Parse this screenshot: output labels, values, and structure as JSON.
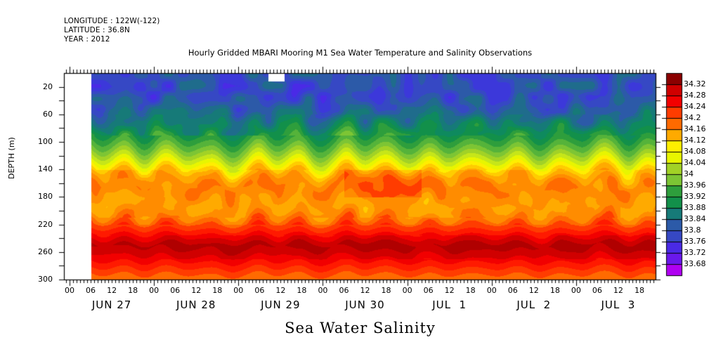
{
  "header": {
    "longitude": "LONGITUDE : 122W(-122)",
    "latitude": "LATITUDE : 36.8N",
    "year": "YEAR : 2012"
  },
  "chart_data": {
    "type": "heatmap",
    "subtype": "filled-contour",
    "title": "Hourly Gridded MBARI Mooring M1 Sea Water Temperature and Salinity Observations",
    "variable_title": "Sea Water Salinity",
    "xlabel": "",
    "ylabel": "DEPTH (m)",
    "y_axis": {
      "range": [
        0,
        300
      ],
      "inverted": true,
      "major_ticks": [
        20,
        60,
        100,
        140,
        180,
        220,
        260,
        300
      ],
      "minor_ticks": [
        40,
        80,
        120,
        160,
        200,
        240,
        280
      ]
    },
    "x_axis": {
      "unit": "hour",
      "range_hours_from_jun27_00": [
        -1.6,
        166.6
      ],
      "hour_tick_labels": [
        "00",
        "06",
        "12",
        "18",
        "00",
        "06",
        "12",
        "18",
        "00",
        "06",
        "12",
        "18",
        "00",
        "06",
        "12",
        "18",
        "00",
        "06",
        "12",
        "18",
        "00",
        "06",
        "12",
        "18",
        "00",
        "06",
        "12",
        "18"
      ],
      "hour_tick_values": [
        0,
        6,
        12,
        18,
        24,
        30,
        36,
        42,
        48,
        54,
        60,
        66,
        72,
        78,
        84,
        90,
        96,
        102,
        108,
        114,
        120,
        126,
        132,
        138,
        144,
        150,
        156,
        162
      ],
      "day_labels": [
        "JUN 27",
        "JUN 28",
        "JUN 29",
        "JUN 30",
        "JUL  1",
        "JUL  2",
        "JUL  3"
      ],
      "day_label_centers_hours": [
        12,
        36,
        60,
        84,
        108,
        132,
        156
      ],
      "data_start_hour": 6,
      "missing_region": {
        "hours": [
          56.5,
          61
        ],
        "depth": [
          0,
          12
        ]
      }
    },
    "colorbar": {
      "labels": [
        "34.32",
        "34.28",
        "34.24",
        "34.2",
        "34.16",
        "34.12",
        "34.08",
        "34.04",
        "34",
        "33.96",
        "33.92",
        "33.88",
        "33.84",
        "33.8",
        "33.76",
        "33.72",
        "33.68"
      ],
      "levels": [
        33.68,
        33.7,
        33.72,
        33.74,
        33.76,
        33.78,
        33.8,
        33.82,
        33.84,
        33.86,
        33.88,
        33.9,
        33.92,
        33.94,
        33.96,
        33.98,
        34.0,
        34.02,
        34.04,
        34.06,
        34.08,
        34.1,
        34.12,
        34.14,
        34.16,
        34.18,
        34.2,
        34.22,
        34.24,
        34.26,
        34.28,
        34.3,
        34.32
      ],
      "colors_high_to_low": [
        "#8b0000",
        "#b00000",
        "#d00000",
        "#f20000",
        "#ff1a00",
        "#ff3c00",
        "#ff6a00",
        "#ff8c00",
        "#ffaa00",
        "#ffcc00",
        "#ffee00",
        "#e8f500",
        "#c6e619",
        "#a2d226",
        "#7dc534",
        "#55b33a",
        "#2e9e3c",
        "#12904a",
        "#0e8a5e",
        "#167a78",
        "#1f6c8c",
        "#2c5aa8",
        "#3648c4",
        "#3c38da",
        "#4a2ae6",
        "#6a18ec",
        "#8c0cf0",
        "#b000f2"
      ]
    },
    "profile_samples": {
      "depths": [
        10,
        30,
        50,
        70,
        90,
        110,
        130,
        145,
        160,
        175,
        190,
        205,
        220,
        235,
        250,
        265,
        280,
        295
      ],
      "mean_salinity": [
        33.8,
        33.79,
        33.82,
        33.86,
        33.92,
        33.98,
        34.06,
        34.13,
        34.17,
        34.16,
        34.14,
        34.15,
        34.2,
        34.25,
        34.3,
        34.27,
        34.23,
        34.19
      ]
    }
  }
}
